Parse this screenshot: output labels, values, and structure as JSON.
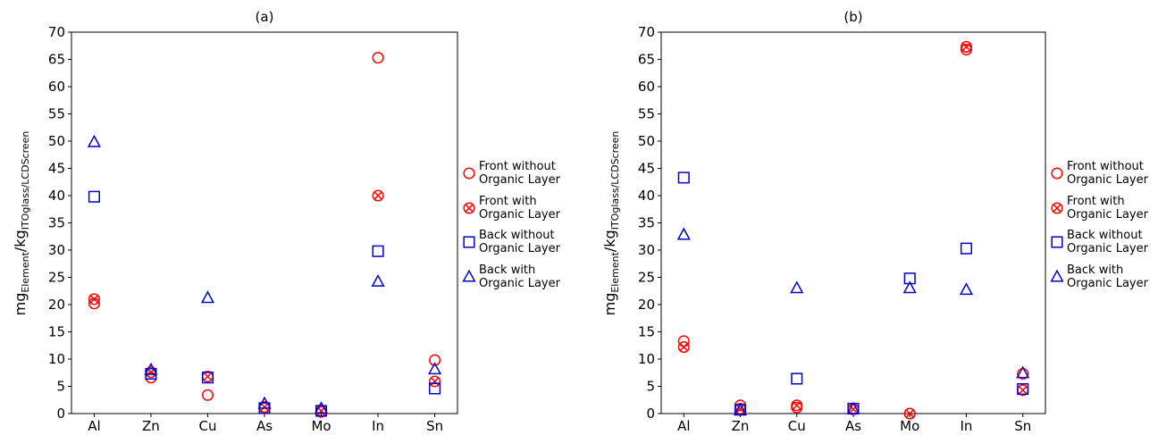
{
  "colors": {
    "front": "#ff0000",
    "back": "#0000cc"
  },
  "legend": [
    "Front without Organic Layer",
    "Front with Organic Layer",
    "Back without Organic Layer",
    "Back with Organic Layer"
  ],
  "chart_data": [
    {
      "type": "scatter",
      "title": "(a)",
      "ylabel": {
        "main1": "mg",
        "sub1": "Element",
        "main2": "/kg",
        "sub2": "ITOglass/LCDScreen"
      },
      "categories": [
        "Al",
        "Zn",
        "Cu",
        "As",
        "Mo",
        "In",
        "Sn"
      ],
      "ylim": [
        0,
        70
      ],
      "yticks": [
        "0",
        "5",
        "10",
        "15",
        "20",
        "25",
        "30",
        "35",
        "40",
        "45",
        "50",
        "55",
        "60",
        "65",
        "70"
      ],
      "grid": false,
      "legend_position": "right",
      "series": [
        {
          "name": "Front without Organic Layer",
          "marker": "circle",
          "color": "#ff0000",
          "values": [
            20.2,
            6.6,
            3.4,
            1.0,
            0.3,
            65.3,
            9.8
          ]
        },
        {
          "name": "Front with Organic Layer",
          "marker": "x-circle",
          "color": "#ff0000",
          "values": [
            21.0,
            7.6,
            6.8,
            1.2,
            0.5,
            40.0,
            5.9
          ]
        },
        {
          "name": "Back without Organic Layer",
          "marker": "square",
          "color": "#0000cc",
          "values": [
            39.8,
            7.3,
            6.6,
            1.0,
            0.5,
            29.8,
            4.6
          ]
        },
        {
          "name": "Back with Organic Layer",
          "marker": "triangle",
          "color": "#0000cc",
          "values": [
            49.8,
            8.0,
            21.2,
            1.8,
            0.9,
            24.2,
            8.1
          ]
        }
      ]
    },
    {
      "type": "scatter",
      "title": "(b)",
      "ylabel": {
        "main1": "mg",
        "sub1": "Element",
        "main2": "/kg",
        "sub2": "ITOglass/LCDScreen"
      },
      "categories": [
        "Al",
        "Zn",
        "Cu",
        "As",
        "Mo",
        "In",
        "Sn"
      ],
      "ylim": [
        0,
        70
      ],
      "yticks": [
        "0",
        "5",
        "10",
        "15",
        "20",
        "25",
        "30",
        "35",
        "40",
        "45",
        "50",
        "55",
        "60",
        "65",
        "70"
      ],
      "grid": false,
      "legend_position": "right",
      "series": [
        {
          "name": "Front without Organic Layer",
          "marker": "circle",
          "color": "#ff0000",
          "values": [
            13.3,
            1.5,
            1.1,
            0.8,
            0.0,
            66.8,
            7.3
          ]
        },
        {
          "name": "Front with Organic Layer",
          "marker": "x-circle",
          "color": "#ff0000",
          "values": [
            12.2,
            0.9,
            1.5,
            0.8,
            0.0,
            67.3,
            4.3
          ]
        },
        {
          "name": "Back without Organic Layer",
          "marker": "square",
          "color": "#0000cc",
          "values": [
            43.3,
            0.7,
            6.4,
            0.9,
            24.8,
            30.3,
            4.5
          ]
        },
        {
          "name": "Back with Organic Layer",
          "marker": "triangle",
          "color": "#0000cc",
          "values": [
            32.8,
            0.6,
            23.0,
            0.8,
            23.0,
            22.7,
            7.4
          ]
        }
      ]
    }
  ]
}
